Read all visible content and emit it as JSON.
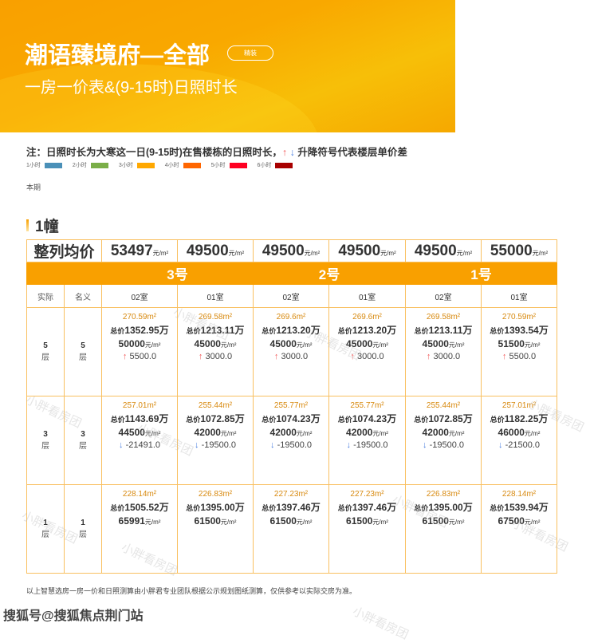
{
  "header": {
    "title": "潮语臻境府—全部",
    "badge": "精装",
    "subtitle": "一房一价表&(9-15时)日照时长"
  },
  "note": {
    "prefix": "注：日照时长为大寒这一日(9-15时)在售楼栋的日照时长，",
    "up": "↑",
    "down": "↓",
    "suffix": " 升降符号代表楼层单价差"
  },
  "legend": [
    {
      "label": "1小时",
      "color": "#4a90b8"
    },
    {
      "label": "2小时",
      "color": "#7aae48"
    },
    {
      "label": "3小时",
      "color": "#ffa800"
    },
    {
      "label": "4小时",
      "color": "#ff6600"
    },
    {
      "label": "5小时",
      "color": "#ff0022"
    },
    {
      "label": "6小时",
      "color": "#a80000"
    }
  ],
  "period": "本期",
  "building": "1幢",
  "table": {
    "avg_label": "整列均价",
    "unit": "元/m²",
    "avg_prices": [
      "53497",
      "49500",
      "49500",
      "49500",
      "49500",
      "55000"
    ],
    "buildings": [
      "3号",
      "2号",
      "1号"
    ],
    "col_actual": "实际",
    "col_nominal": "名义",
    "rooms": [
      "02室",
      "01室",
      "02室",
      "01室",
      "02室",
      "01室"
    ],
    "total_prefix": "总价",
    "wan": "万",
    "rows": [
      {
        "actual": "5",
        "nominal": "5",
        "floor_suffix": "层",
        "cells": [
          {
            "area": "270.59m²",
            "total": "1352.95",
            "price": "50000",
            "dir": "up",
            "diff": "5500.0"
          },
          {
            "area": "269.58m²",
            "total": "1213.11",
            "price": "45000",
            "dir": "up",
            "diff": "3000.0"
          },
          {
            "area": "269.6m²",
            "total": "1213.20",
            "price": "45000",
            "dir": "up",
            "diff": "3000.0"
          },
          {
            "area": "269.6m²",
            "total": "1213.20",
            "price": "45000",
            "dir": "up",
            "diff": "3000.0"
          },
          {
            "area": "269.58m²",
            "total": "1213.11",
            "price": "45000",
            "dir": "up",
            "diff": "3000.0"
          },
          {
            "area": "270.59m²",
            "total": "1393.54",
            "price": "51500",
            "dir": "up",
            "diff": "5500.0"
          }
        ]
      },
      {
        "actual": "3",
        "nominal": "3",
        "floor_suffix": "层",
        "cells": [
          {
            "area": "257.01m²",
            "total": "1143.69",
            "price": "44500",
            "dir": "down",
            "diff": "-21491.0"
          },
          {
            "area": "255.44m²",
            "total": "1072.85",
            "price": "42000",
            "dir": "down",
            "diff": "-19500.0"
          },
          {
            "area": "255.77m²",
            "total": "1074.23",
            "price": "42000",
            "dir": "down",
            "diff": "-19500.0"
          },
          {
            "area": "255.77m²",
            "total": "1074.23",
            "price": "42000",
            "dir": "down",
            "diff": "-19500.0"
          },
          {
            "area": "255.44m²",
            "total": "1072.85",
            "price": "42000",
            "dir": "down",
            "diff": "-19500.0"
          },
          {
            "area": "257.01m²",
            "total": "1182.25",
            "price": "46000",
            "dir": "down",
            "diff": "-21500.0"
          }
        ]
      },
      {
        "actual": "1",
        "nominal": "1",
        "floor_suffix": "层",
        "cells": [
          {
            "area": "228.14m²",
            "total": "1505.52",
            "price": "65991"
          },
          {
            "area": "226.83m²",
            "total": "1395.00",
            "price": "61500"
          },
          {
            "area": "227.23m²",
            "total": "1397.46",
            "price": "61500"
          },
          {
            "area": "227.23m²",
            "total": "1397.46",
            "price": "61500"
          },
          {
            "area": "226.83m²",
            "total": "1395.00",
            "price": "61500"
          },
          {
            "area": "228.14m²",
            "total": "1539.94",
            "price": "67500"
          }
        ]
      }
    ]
  },
  "footnote": "以上智慧选房一房一价和日照测算由小胖君专业团队根据公示规划图纸测算，仅供参考以实际交房为准。",
  "source": "搜狐号@搜狐焦点荆门站",
  "watermark": "小胖看房团"
}
